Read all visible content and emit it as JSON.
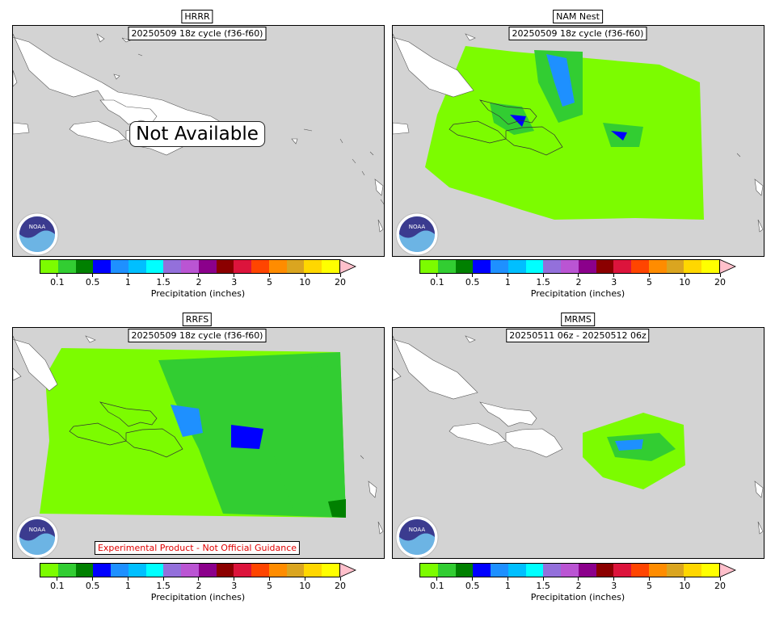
{
  "colorbar": {
    "colors": [
      "#7cfc00",
      "#32cd32",
      "#008000",
      "#0000ff",
      "#1e90ff",
      "#00bfff",
      "#00ffff",
      "#9370db",
      "#ba55d3",
      "#8b008b",
      "#8b0000",
      "#dc143c",
      "#ff4500",
      "#ff8c00",
      "#daa520",
      "#ffd700",
      "#ffff00"
    ],
    "extend_color": "#ffc0cb",
    "tick_labels": [
      "0.1",
      "0.5",
      "1",
      "1.5",
      "2",
      "3",
      "5",
      "10",
      "20"
    ],
    "label": "Precipitation (inches)"
  },
  "logo": {
    "text": "NOAA",
    "icon": "noaa-logo-icon"
  },
  "panels": [
    {
      "title": "HRRR",
      "subtitle": "20250509 18z cycle (f36-f60)",
      "status": "Not Available"
    },
    {
      "title": "NAM Nest",
      "subtitle": "20250509 18z cycle (f36-f60)"
    },
    {
      "title": "RRFS",
      "subtitle": "20250509 18z cycle (f36-f60)",
      "note": "Experimental Product - Not Official Guidance"
    },
    {
      "title": "MRMS",
      "subtitle": "20250511 06z - 20250512 06z"
    }
  ]
}
